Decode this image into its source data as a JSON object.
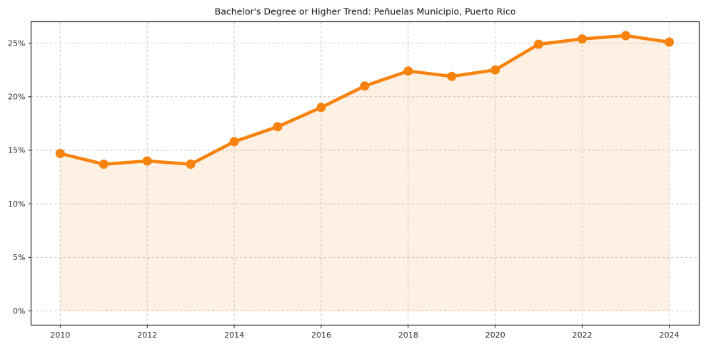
{
  "chart_data": {
    "type": "line",
    "title": "Bachelor's Degree or Higher Trend: Peñuelas Municipio, Puerto Rico",
    "series": [
      {
        "name": "Bachelor's degree or higher (%)",
        "x": [
          2010,
          2011,
          2012,
          2013,
          2014,
          2015,
          2016,
          2017,
          2018,
          2019,
          2020,
          2021,
          2022,
          2023,
          2024
        ],
        "values": [
          14.7,
          13.7,
          14.0,
          13.7,
          15.8,
          17.2,
          19.0,
          21.0,
          22.4,
          21.9,
          22.5,
          24.9,
          25.4,
          25.7,
          25.1
        ]
      }
    ],
    "xlabel": "",
    "ylabel": "",
    "xticks": [
      2010,
      2012,
      2014,
      2016,
      2018,
      2020,
      2022,
      2024
    ],
    "xtick_labels": [
      "2010",
      "2012",
      "2014",
      "2016",
      "2018",
      "2020",
      "2022",
      "2024"
    ],
    "yticks": [
      0,
      5,
      10,
      15,
      20,
      25
    ],
    "ytick_labels": [
      "0%",
      "5%",
      "10%",
      "15%",
      "20%",
      "25%"
    ],
    "xlim": [
      2009.33,
      2024.69
    ],
    "ylim": [
      -1.33,
      27.0
    ],
    "grid": true,
    "legend": false,
    "area_fill_to": 0,
    "colors": {
      "line": "#F7820E",
      "marker": "#F7820E",
      "fill": "rgba(247,130,14,0.12)",
      "grid": "#c9c9c9",
      "axis": "#262626",
      "tick_label": "#2e2e2e",
      "title": "#111111",
      "background": "#ffffff"
    }
  }
}
